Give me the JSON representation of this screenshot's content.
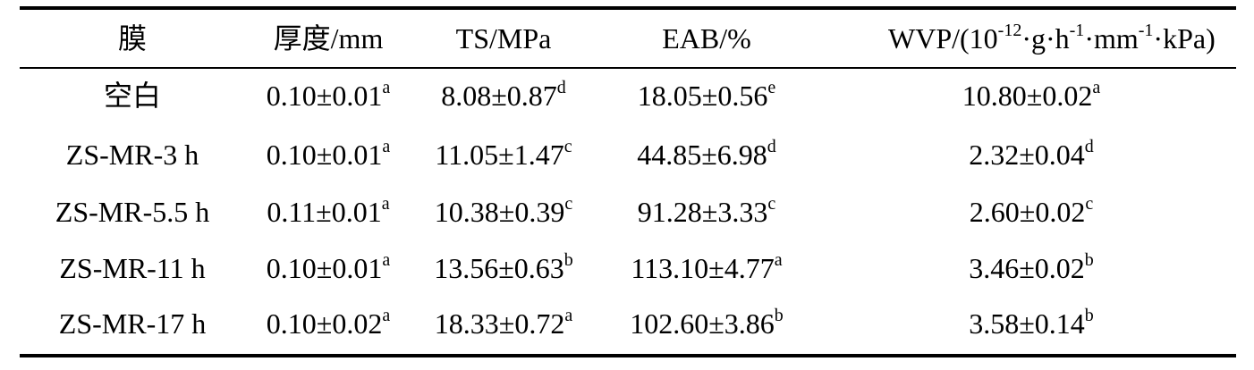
{
  "table": {
    "header": [
      "膜",
      "厚度/mm",
      "TS/MPa",
      "EAB/%",
      [
        "WVP/(10",
        "-12",
        "·g·h",
        "-1",
        "·mm",
        "-1",
        "·kPa)"
      ]
    ],
    "rows": [
      [
        "空白",
        {
          "text": "0.10±0.01",
          "sup": "a"
        },
        {
          "text": "8.08±0.87",
          "sup": "d"
        },
        {
          "text": "18.05±0.56",
          "sup": "e"
        },
        {
          "text": "10.80±0.02",
          "sup": "a"
        }
      ],
      [
        "ZS-MR-3 h",
        {
          "text": "0.10±0.01",
          "sup": "a"
        },
        {
          "text": "11.05±1.47",
          "sup": "c"
        },
        {
          "text": "44.85±6.98",
          "sup": "d"
        },
        {
          "text": "2.32±0.04",
          "sup": "d"
        }
      ],
      [
        "ZS-MR-5.5 h",
        {
          "text": "0.11±0.01",
          "sup": "a"
        },
        {
          "text": "10.38±0.39",
          "sup": "c"
        },
        {
          "text": "91.28±3.33",
          "sup": "c"
        },
        {
          "text": "2.60±0.02",
          "sup": "c"
        }
      ],
      [
        "ZS-MR-11 h",
        {
          "text": "0.10±0.01",
          "sup": "a"
        },
        {
          "text": "13.56±0.63",
          "sup": "b"
        },
        {
          "text": "113.10±4.77",
          "sup": "a"
        },
        {
          "text": "3.46±0.02",
          "sup": "b"
        }
      ],
      [
        "ZS-MR-17 h",
        {
          "text": "0.10±0.02",
          "sup": "a"
        },
        {
          "text": "18.33±0.72",
          "sup": "a"
        },
        {
          "text": "102.60±3.86",
          "sup": "b"
        },
        {
          "text": "3.58±0.14",
          "sup": "b"
        }
      ]
    ]
  }
}
